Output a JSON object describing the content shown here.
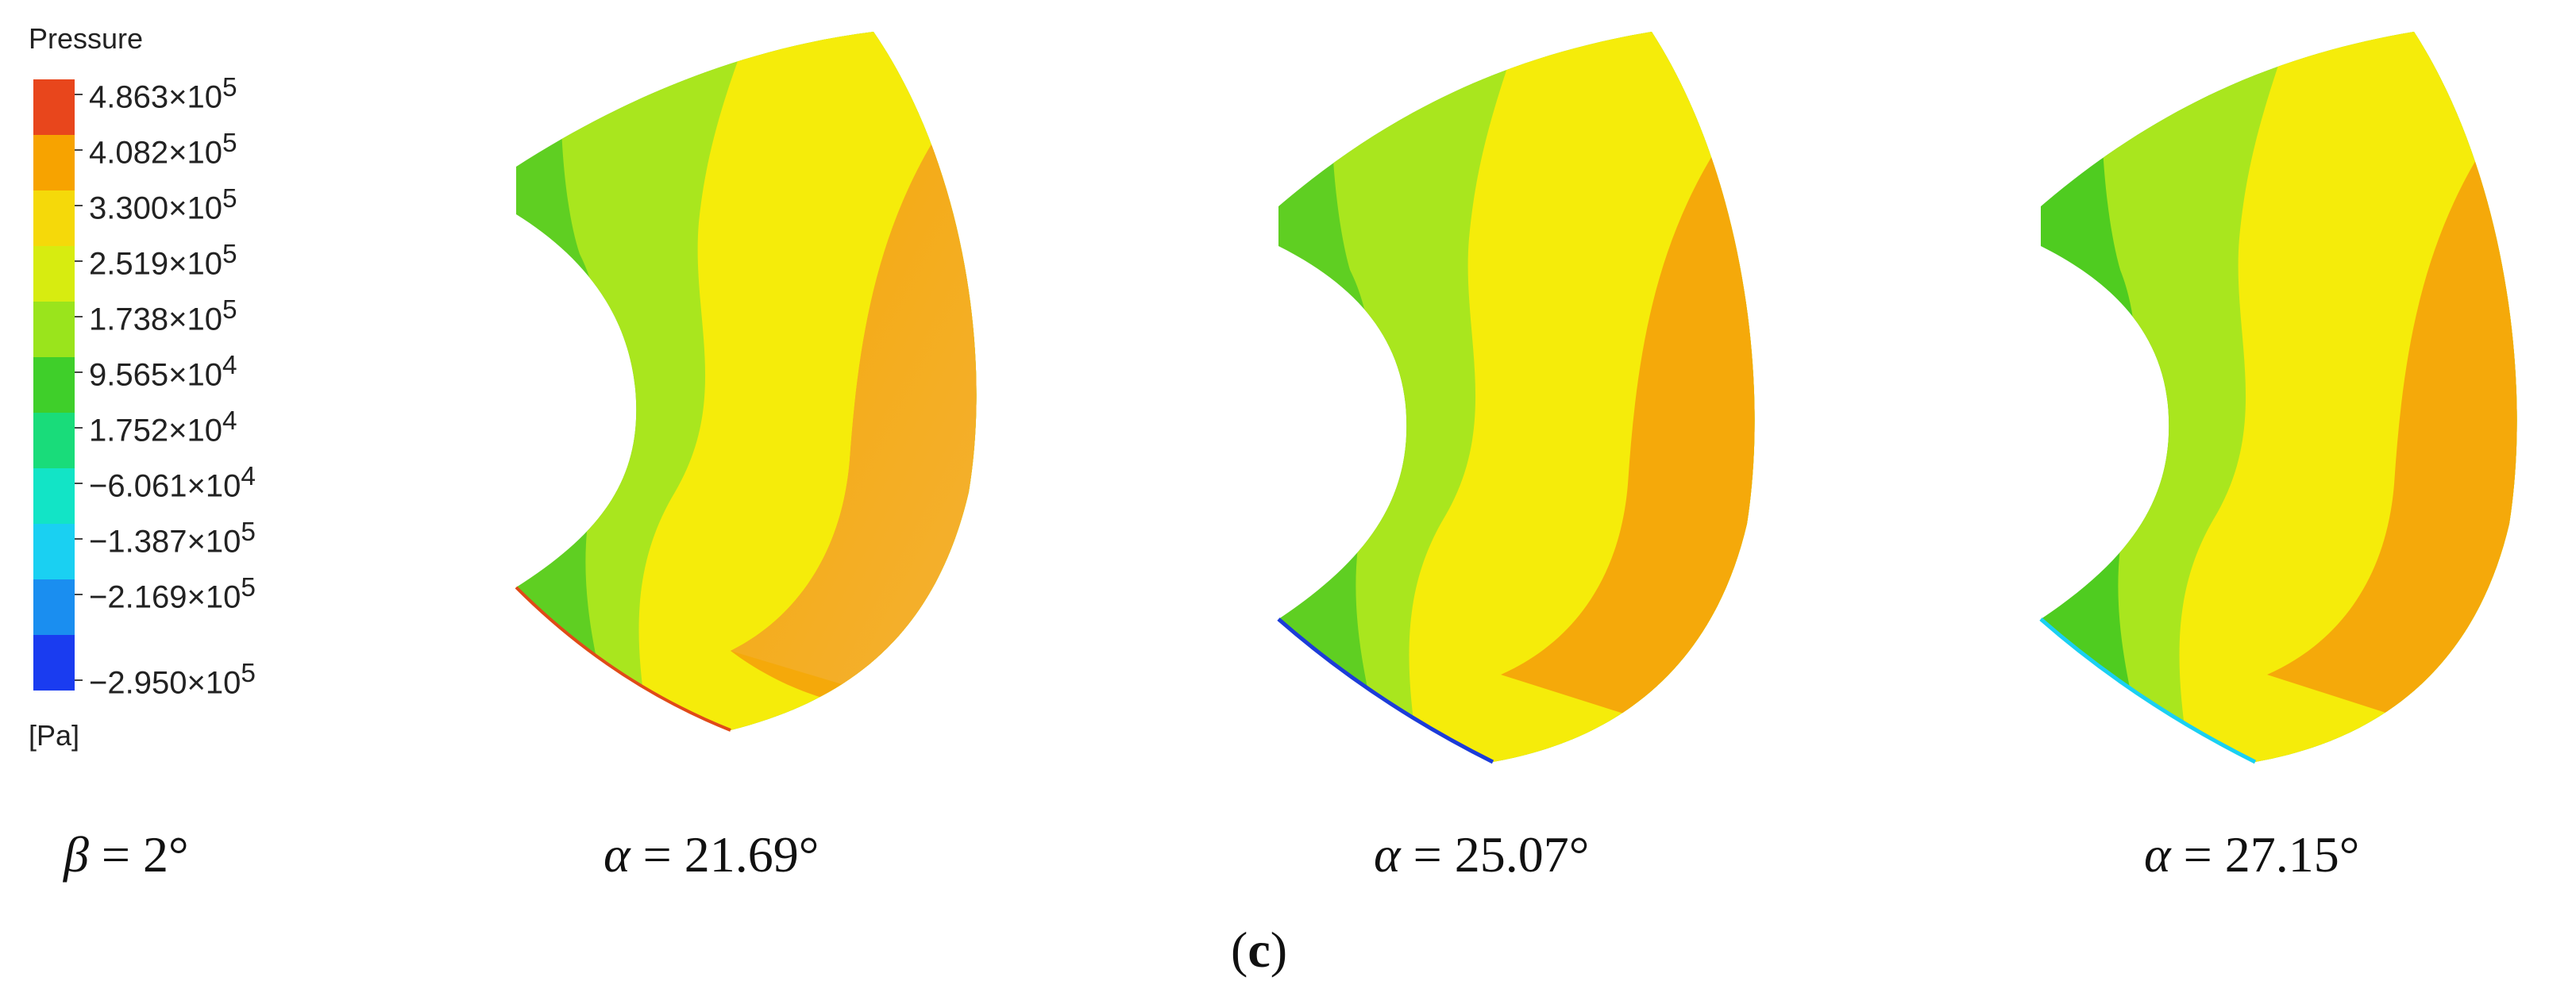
{
  "legend": {
    "title": "Pressure",
    "unit": "[Pa]",
    "ticks": [
      {
        "mant": "4.863",
        "exp": "5"
      },
      {
        "mant": "4.082",
        "exp": "5"
      },
      {
        "mant": "3.300",
        "exp": "5"
      },
      {
        "mant": "2.519",
        "exp": "5"
      },
      {
        "mant": "1.738",
        "exp": "5"
      },
      {
        "mant": "9.565",
        "exp": "4"
      },
      {
        "mant": "1.752",
        "exp": "4"
      },
      {
        "mant": "−6.061",
        "exp": "4"
      },
      {
        "mant": "−1.387",
        "exp": "5"
      },
      {
        "mant": "−2.169",
        "exp": "5"
      },
      {
        "mant": "−2.950",
        "exp": "5"
      }
    ],
    "colors": [
      "#e8461c",
      "#f7a300",
      "#f5d90a",
      "#d7ec10",
      "#9ae41c",
      "#3fcf2a",
      "#19dc7a",
      "#12e4c6",
      "#1ad0f2",
      "#1a8ef0",
      "#1a3cf0"
    ]
  },
  "captions": [
    {
      "symbol": "β",
      "value": " = 2°"
    },
    {
      "symbol": "α",
      "value": " = 21.69°"
    },
    {
      "symbol": "α",
      "value": " = 25.07°"
    },
    {
      "symbol": "α",
      "value": " = 27.15°"
    }
  ],
  "panel_label": "c",
  "contour_colors": {
    "dark_green": "#5fcf22",
    "light_green": "#a9e61e",
    "yellow": "#f5ec0a",
    "orange": "#f5a90a",
    "edge_red": "#e04a18",
    "edge_blue": "#1c3cd8"
  }
}
